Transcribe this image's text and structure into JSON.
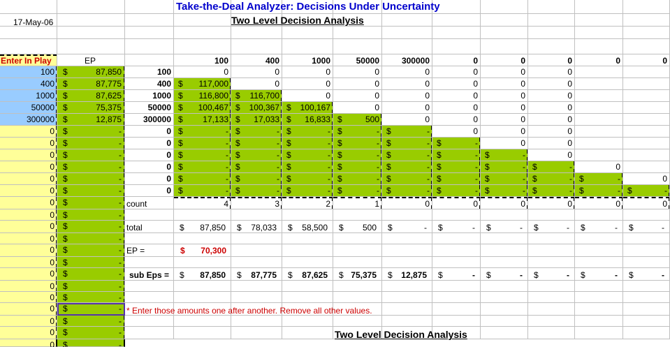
{
  "header": {
    "title": "Take-the-Deal Analyzer:  Decisions Under Uncertainty",
    "date": "17-May-06",
    "subtitle": "Two Level Decision Analysis",
    "subtitle2": "Two Level Decision Analysis"
  },
  "labels": {
    "enter_in_play": "Enter In Play",
    "ep": "EP",
    "count": "count",
    "total": "total",
    "ep_eq": "EP =",
    "sub_eps": "sub Eps =",
    "note": "*  Enter those amounts one after another. Remove all other values.",
    "dollar": "$",
    "dash": "-"
  },
  "col_headers": [
    "100",
    "400",
    "1000",
    "50000",
    "300000",
    "0",
    "0",
    "0",
    "0",
    "0"
  ],
  "col_a": [
    "100",
    "400",
    "1000",
    "50000",
    "300000",
    "0",
    "0",
    "0",
    "0",
    "0",
    "0",
    "0",
    "0",
    "0",
    "0",
    "0",
    "0",
    "0",
    "0",
    "0",
    "0",
    "0",
    "0",
    "0"
  ],
  "ep_values": [
    "87,850",
    "87,775",
    "87,625",
    "75,375",
    "12,875",
    "-",
    "-",
    "-",
    "-",
    "-",
    "-",
    "-",
    "-",
    "-",
    "-",
    "-",
    "-",
    "-",
    "-",
    "-",
    "-",
    "-",
    "-",
    "-"
  ],
  "row_labels": [
    "100",
    "400",
    "1000",
    "50000",
    "300000",
    "0",
    "0",
    "0",
    "0",
    "0",
    "0"
  ],
  "matrix": [
    [
      "0",
      "0",
      "0",
      "0",
      "0",
      "0",
      "0",
      "0",
      "",
      ""
    ],
    [
      "117,000",
      "0",
      "0",
      "0",
      "0",
      "0",
      "0",
      "0",
      "",
      ""
    ],
    [
      "116,800",
      "116,700",
      "0",
      "0",
      "0",
      "0",
      "0",
      "0",
      "",
      ""
    ],
    [
      "100,467",
      "100,367",
      "100,167",
      "0",
      "0",
      "0",
      "0",
      "0",
      "",
      ""
    ],
    [
      "17,133",
      "17,033",
      "16,833",
      "500",
      "0",
      "0",
      "0",
      "0",
      "",
      ""
    ],
    [
      "-",
      "-",
      "-",
      "-",
      "-",
      "0",
      "0",
      "0",
      "",
      ""
    ],
    [
      "-",
      "-",
      "-",
      "-",
      "-",
      "-",
      "0",
      "0",
      "",
      ""
    ],
    [
      "-",
      "-",
      "-",
      "-",
      "-",
      "-",
      "-",
      "0",
      "",
      ""
    ],
    [
      "-",
      "-",
      "-",
      "-",
      "-",
      "-",
      "-",
      "-",
      "0",
      ""
    ],
    [
      "-",
      "-",
      "-",
      "-",
      "-",
      "-",
      "-",
      "-",
      "-",
      "0"
    ],
    [
      "-",
      "-",
      "-",
      "-",
      "-",
      "-",
      "-",
      "-",
      "-",
      "-"
    ]
  ],
  "count": [
    "4",
    "3",
    "2",
    "1",
    "0",
    "0",
    "0",
    "0",
    "0",
    "0"
  ],
  "total": [
    "87,850",
    "78,033",
    "58,500",
    "500",
    "-",
    "-",
    "-",
    "-",
    "-",
    "-"
  ],
  "ep_result": "70,300",
  "sub_eps": [
    "87,850",
    "87,775",
    "87,625",
    "75,375",
    "12,875",
    "-",
    "-",
    "-",
    "-",
    "-"
  ],
  "colors": {
    "title": "#0000cc",
    "green": "#99cc00",
    "yellow": "#ffff99",
    "blue": "#99ccff",
    "red": "#cc0000"
  }
}
